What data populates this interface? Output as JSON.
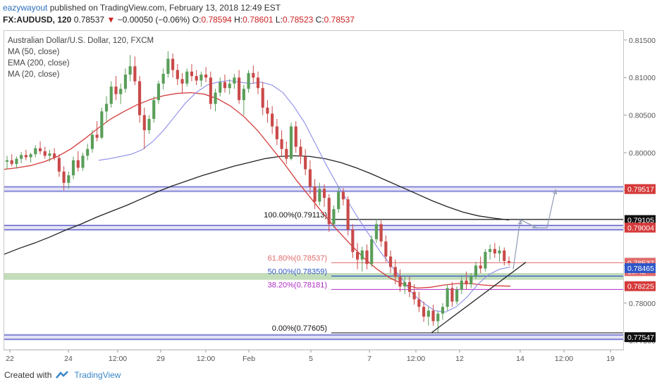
{
  "header": {
    "author": "eazywayout",
    "published_text": "published on TradingView.com, February 13, 2018 12:49 EST"
  },
  "symbol_bar": {
    "symbol": "FX:AUDUSD, 120",
    "last": "0.78537",
    "change": "−0.00050 (−0.06%)",
    "o_label": "O:",
    "o_value": "0.78594",
    "h_label": "H:",
    "h_value": "0.78601",
    "l_label": "L:",
    "l_value": "0.78523",
    "c_label": "C:",
    "c_value": "0.78537"
  },
  "legend": {
    "title": "Australian Dollar/U.S. Dollar, 120, FXCM",
    "ind1": "MA (50, close)",
    "ind2": "EMA (200, close)",
    "ind3": "MA (20, close)"
  },
  "footer": {
    "created_with": "Created with",
    "brand": "TradingView"
  },
  "colors": {
    "up": "#5a9e5a",
    "down": "#c94a4a",
    "ma50": "#d53a3a",
    "ema200": "#222222",
    "ma20": "#8c8cea",
    "zone": "#5858c8",
    "green_zone": "#a9cf9c",
    "fib618": "#e06a6a",
    "fib500": "#2d56c8",
    "fib382": "#b02cc8",
    "arrow": "#8f9bb3"
  },
  "chart_data": {
    "type": "candlestick",
    "symbol": "AUDUSD",
    "timeframe": "120",
    "ylim": [
      0.7738,
      0.8162
    ],
    "y_ticks": [
      "0.81500",
      "0.81000",
      "0.80500",
      "0.80000",
      "0.79500",
      "0.79000",
      "0.78500",
      "0.78000",
      "0.77500"
    ],
    "x_tick_labels": [
      "22",
      "24",
      "12:00",
      "29",
      "12:00",
      "Feb",
      "5",
      "7",
      "12:00",
      "12",
      "14",
      "12:00",
      "19"
    ],
    "price_labels": [
      {
        "text": "0.79517",
        "value": 0.79517,
        "bg": "#d53a3a",
        "fg": "#ffffff"
      },
      {
        "text": "0.79105",
        "value": 0.79105,
        "bg": "#111111",
        "fg": "#ffffff"
      },
      {
        "text": "0.79004",
        "value": 0.79004,
        "bg": "#d53a3a",
        "fg": "#ffffff"
      },
      {
        "text": "0.78537",
        "value": 0.78537,
        "bg": "#e06a6a",
        "fg": "#ffffff"
      },
      {
        "text": "10:42",
        "value": 0.78425,
        "bg": "#e06a6a",
        "fg": "#ffffff"
      },
      {
        "text": "0.78465",
        "value": 0.78465,
        "bg": "#2d56c8",
        "fg": "#ffffff"
      },
      {
        "text": "0.78225",
        "value": 0.78225,
        "bg": "#d53a3a",
        "fg": "#ffffff"
      },
      {
        "text": "0.77547",
        "value": 0.77547,
        "bg": "#111111",
        "fg": "#ffffff"
      }
    ],
    "fib_levels": [
      {
        "label": "100.00%(0.79113)",
        "value": 0.79113
      },
      {
        "label": "61.80%(0.78537)",
        "value": 0.78537
      },
      {
        "label": "50.00%(0.78359)",
        "value": 0.78359
      },
      {
        "label": "38.20%(0.78181)",
        "value": 0.78181
      },
      {
        "label": "0.00%(0.77605)",
        "value": 0.77605
      }
    ],
    "zones": [
      {
        "value": 0.79517
      },
      {
        "value": 0.79004
      },
      {
        "value": 0.77547
      }
    ],
    "candles": [
      [
        0.7988,
        0.7996,
        0.7978,
        0.799
      ],
      [
        0.799,
        0.7998,
        0.7982,
        0.7985
      ],
      [
        0.7985,
        0.7995,
        0.7979,
        0.7992
      ],
      [
        0.7992,
        0.8001,
        0.7986,
        0.7997
      ],
      [
        0.7997,
        0.8004,
        0.799,
        0.7994
      ],
      [
        0.7994,
        0.8,
        0.7987,
        0.7998
      ],
      [
        0.7998,
        0.801,
        0.7994,
        0.8006
      ],
      [
        0.8006,
        0.8015,
        0.7998,
        0.8002
      ],
      [
        0.8002,
        0.8008,
        0.7992,
        0.7996
      ],
      [
        0.7996,
        0.8004,
        0.7988,
        0.7999
      ],
      [
        0.7999,
        0.8006,
        0.799,
        0.7993
      ],
      [
        0.7993,
        0.7998,
        0.7968,
        0.7975
      ],
      [
        0.7975,
        0.7982,
        0.795,
        0.796
      ],
      [
        0.796,
        0.7975,
        0.7952,
        0.797
      ],
      [
        0.797,
        0.7995,
        0.7965,
        0.799
      ],
      [
        0.799,
        0.8002,
        0.7975,
        0.798
      ],
      [
        0.798,
        0.8,
        0.7976,
        0.7996
      ],
      [
        0.7996,
        0.8012,
        0.799,
        0.8005
      ],
      [
        0.8005,
        0.803,
        0.8,
        0.8024
      ],
      [
        0.8024,
        0.8042,
        0.8015,
        0.802
      ],
      [
        0.802,
        0.806,
        0.8018,
        0.8055
      ],
      [
        0.8055,
        0.8075,
        0.804,
        0.8065
      ],
      [
        0.8065,
        0.8095,
        0.806,
        0.8088
      ],
      [
        0.8088,
        0.8102,
        0.807,
        0.8078
      ],
      [
        0.8078,
        0.8092,
        0.8065,
        0.8085
      ],
      [
        0.8085,
        0.8112,
        0.808,
        0.8104
      ],
      [
        0.8104,
        0.813,
        0.8095,
        0.8115
      ],
      [
        0.8115,
        0.8128,
        0.809,
        0.8095
      ],
      [
        0.8095,
        0.8102,
        0.804,
        0.805
      ],
      [
        0.805,
        0.806,
        0.8005,
        0.803
      ],
      [
        0.803,
        0.805,
        0.8025,
        0.8045
      ],
      [
        0.8045,
        0.8075,
        0.804,
        0.807
      ],
      [
        0.807,
        0.8096,
        0.8065,
        0.8092
      ],
      [
        0.8092,
        0.8112,
        0.8084,
        0.8105
      ],
      [
        0.8105,
        0.8135,
        0.81,
        0.8125
      ],
      [
        0.8125,
        0.8132,
        0.81,
        0.811
      ],
      [
        0.811,
        0.8118,
        0.809,
        0.8098
      ],
      [
        0.8098,
        0.8106,
        0.808,
        0.8092
      ],
      [
        0.8092,
        0.8112,
        0.8088,
        0.8108
      ],
      [
        0.8108,
        0.8118,
        0.8095,
        0.8102
      ],
      [
        0.8102,
        0.811,
        0.809,
        0.8096
      ],
      [
        0.8096,
        0.8108,
        0.8088,
        0.8104
      ],
      [
        0.8104,
        0.8114,
        0.8094,
        0.81
      ],
      [
        0.81,
        0.8108,
        0.8058,
        0.8065
      ],
      [
        0.8065,
        0.8085,
        0.8055,
        0.808
      ],
      [
        0.808,
        0.81,
        0.8075,
        0.8094
      ],
      [
        0.8094,
        0.8104,
        0.808,
        0.8086
      ],
      [
        0.8086,
        0.8098,
        0.8078,
        0.8092
      ],
      [
        0.8092,
        0.8105,
        0.8085,
        0.81
      ],
      [
        0.81,
        0.811,
        0.8065,
        0.807
      ],
      [
        0.807,
        0.809,
        0.805,
        0.8085
      ],
      [
        0.8085,
        0.811,
        0.808,
        0.8106
      ],
      [
        0.8106,
        0.8116,
        0.8092,
        0.81
      ],
      [
        0.81,
        0.8108,
        0.8078,
        0.8086
      ],
      [
        0.8086,
        0.8094,
        0.805,
        0.806
      ],
      [
        0.806,
        0.807,
        0.804,
        0.8052
      ],
      [
        0.8052,
        0.8062,
        0.8025,
        0.8035
      ],
      [
        0.8035,
        0.8045,
        0.801,
        0.8018
      ],
      [
        0.8018,
        0.803,
        0.7995,
        0.8005
      ],
      [
        0.8005,
        0.8015,
        0.7985,
        0.7992
      ],
      [
        0.7992,
        0.804,
        0.799,
        0.8035
      ],
      [
        0.8035,
        0.8042,
        0.8,
        0.8008
      ],
      [
        0.8008,
        0.8018,
        0.7985,
        0.7995
      ],
      [
        0.7995,
        0.8005,
        0.797,
        0.7978
      ],
      [
        0.7978,
        0.799,
        0.7945,
        0.7955
      ],
      [
        0.7955,
        0.7965,
        0.7925,
        0.7935
      ],
      [
        0.7935,
        0.796,
        0.793,
        0.7952
      ],
      [
        0.7952,
        0.7958,
        0.7928,
        0.794
      ],
      [
        0.794,
        0.7945,
        0.7895,
        0.7905
      ],
      [
        0.7905,
        0.793,
        0.79,
        0.7925
      ],
      [
        0.7925,
        0.7955,
        0.792,
        0.7948
      ],
      [
        0.7948,
        0.7953,
        0.793,
        0.7938
      ],
      [
        0.7938,
        0.7942,
        0.789,
        0.7898
      ],
      [
        0.7898,
        0.7905,
        0.786,
        0.7868
      ],
      [
        0.7868,
        0.788,
        0.7845,
        0.7858
      ],
      [
        0.7858,
        0.7875,
        0.7842,
        0.787
      ],
      [
        0.787,
        0.7878,
        0.7845,
        0.7852
      ],
      [
        0.7852,
        0.789,
        0.7848,
        0.7885
      ],
      [
        0.7885,
        0.7912,
        0.788,
        0.7905
      ],
      [
        0.7905,
        0.791,
        0.7875,
        0.7882
      ],
      [
        0.7882,
        0.789,
        0.7855,
        0.7862
      ],
      [
        0.7862,
        0.787,
        0.784,
        0.7848
      ],
      [
        0.7848,
        0.7858,
        0.7825,
        0.7835
      ],
      [
        0.7835,
        0.7845,
        0.7815,
        0.7822
      ],
      [
        0.7822,
        0.7835,
        0.7812,
        0.7828
      ],
      [
        0.7828,
        0.7835,
        0.7808,
        0.7815
      ],
      [
        0.7815,
        0.7825,
        0.7798,
        0.7805
      ],
      [
        0.7805,
        0.7815,
        0.7788,
        0.7795
      ],
      [
        0.7795,
        0.7802,
        0.7775,
        0.7782
      ],
      [
        0.7782,
        0.7795,
        0.777,
        0.779
      ],
      [
        0.779,
        0.7798,
        0.777,
        0.7776
      ],
      [
        0.7776,
        0.779,
        0.7761,
        0.7786
      ],
      [
        0.7786,
        0.78,
        0.7778,
        0.7795
      ],
      [
        0.7795,
        0.7825,
        0.779,
        0.782
      ],
      [
        0.782,
        0.7828,
        0.7795,
        0.7802
      ],
      [
        0.7802,
        0.7822,
        0.7798,
        0.7818
      ],
      [
        0.7818,
        0.7835,
        0.7812,
        0.783
      ],
      [
        0.783,
        0.7842,
        0.7818,
        0.7825
      ],
      [
        0.7825,
        0.784,
        0.782,
        0.7836
      ],
      [
        0.7836,
        0.7855,
        0.7832,
        0.785
      ],
      [
        0.785,
        0.7862,
        0.784,
        0.7846
      ],
      [
        0.7846,
        0.7872,
        0.7842,
        0.7868
      ],
      [
        0.7868,
        0.7878,
        0.7858,
        0.7872
      ],
      [
        0.7872,
        0.788,
        0.786,
        0.7866
      ],
      [
        0.7866,
        0.7876,
        0.7855,
        0.787
      ],
      [
        0.787,
        0.7874,
        0.785,
        0.7856
      ],
      [
        0.7856,
        0.7862,
        0.785,
        0.78537
      ]
    ],
    "ma20": [
      0.799,
      0.7992,
      0.7995,
      0.7998,
      0.8004,
      0.8015,
      0.803,
      0.8048,
      0.8066,
      0.808,
      0.809,
      0.8094,
      0.8096,
      0.8094,
      0.8092,
      0.8094,
      0.809,
      0.808,
      0.8062,
      0.804,
      0.8012,
      0.7984,
      0.7958,
      0.7935,
      0.7912,
      0.789,
      0.7868,
      0.785,
      0.7832,
      0.7812,
      0.78,
      0.779,
      0.7788,
      0.7795,
      0.7808,
      0.7825,
      0.7838,
      0.7845,
      0.7848
    ],
    "ma50": [
      0.7978,
      0.798,
      0.7983,
      0.7988,
      0.7995,
      0.8005,
      0.8018,
      0.8032,
      0.8045,
      0.8055,
      0.8064,
      0.8071,
      0.8076,
      0.8079,
      0.808,
      0.8078,
      0.8072,
      0.8062,
      0.8048,
      0.803,
      0.8008,
      0.7986,
      0.7962,
      0.794,
      0.7918,
      0.7897,
      0.7878,
      0.786,
      0.7845,
      0.7833,
      0.7825,
      0.782,
      0.7821,
      0.7824,
      0.7826,
      0.7826,
      0.7824,
      0.7823,
      0.78225
    ],
    "ema200": [
      0.7865,
      0.7873,
      0.788,
      0.7888,
      0.7897,
      0.7905,
      0.7914,
      0.7922,
      0.793,
      0.7939,
      0.7948,
      0.7956,
      0.7963,
      0.797,
      0.7976,
      0.7982,
      0.7987,
      0.7992,
      0.7995,
      0.7996,
      0.7995,
      0.7992,
      0.7987,
      0.798,
      0.7972,
      0.7963,
      0.7954,
      0.7945,
      0.7936,
      0.7928,
      0.7921,
      0.7916,
      0.7913,
      0.79105
    ],
    "trendline": [
      [
        0.77605,
        0.7845
      ]
    ],
    "projection": [
      [
        0.7845,
        0.7911
      ],
      [
        0.7911,
        0.79
      ],
      [
        0.79,
        0.7951
      ]
    ],
    "grid": false,
    "legend_position": "top-left"
  }
}
